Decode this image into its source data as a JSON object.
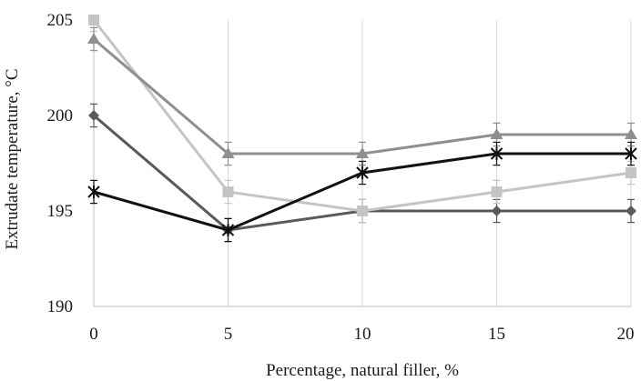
{
  "chart_data": {
    "type": "line",
    "xlabel": "Percentage, natural filler, %",
    "ylabel": "Extrudate temperature, °C",
    "x": [
      0,
      5,
      10,
      15,
      20
    ],
    "xlim": [
      0,
      20
    ],
    "ylim": [
      190,
      205
    ],
    "x_ticks": [
      "0",
      "5",
      "10",
      "15",
      "20"
    ],
    "y_ticks": [
      "190",
      "195",
      "200",
      "205"
    ],
    "grid": "vertical",
    "legend": "none",
    "error_bar": 0.6,
    "series": [
      {
        "marker": "diamond",
        "color": "#5a5a5a",
        "values": [
          200,
          194,
          195,
          195,
          195
        ]
      },
      {
        "marker": "square",
        "color": "#c4c4c4",
        "values": [
          205,
          196,
          195,
          196,
          197
        ]
      },
      {
        "marker": "triangle",
        "color": "#8f8f8f",
        "values": [
          204,
          198,
          198,
          199,
          199
        ]
      },
      {
        "marker": "star",
        "color": "#111111",
        "values": [
          196,
          194,
          197,
          198,
          198
        ]
      }
    ]
  }
}
